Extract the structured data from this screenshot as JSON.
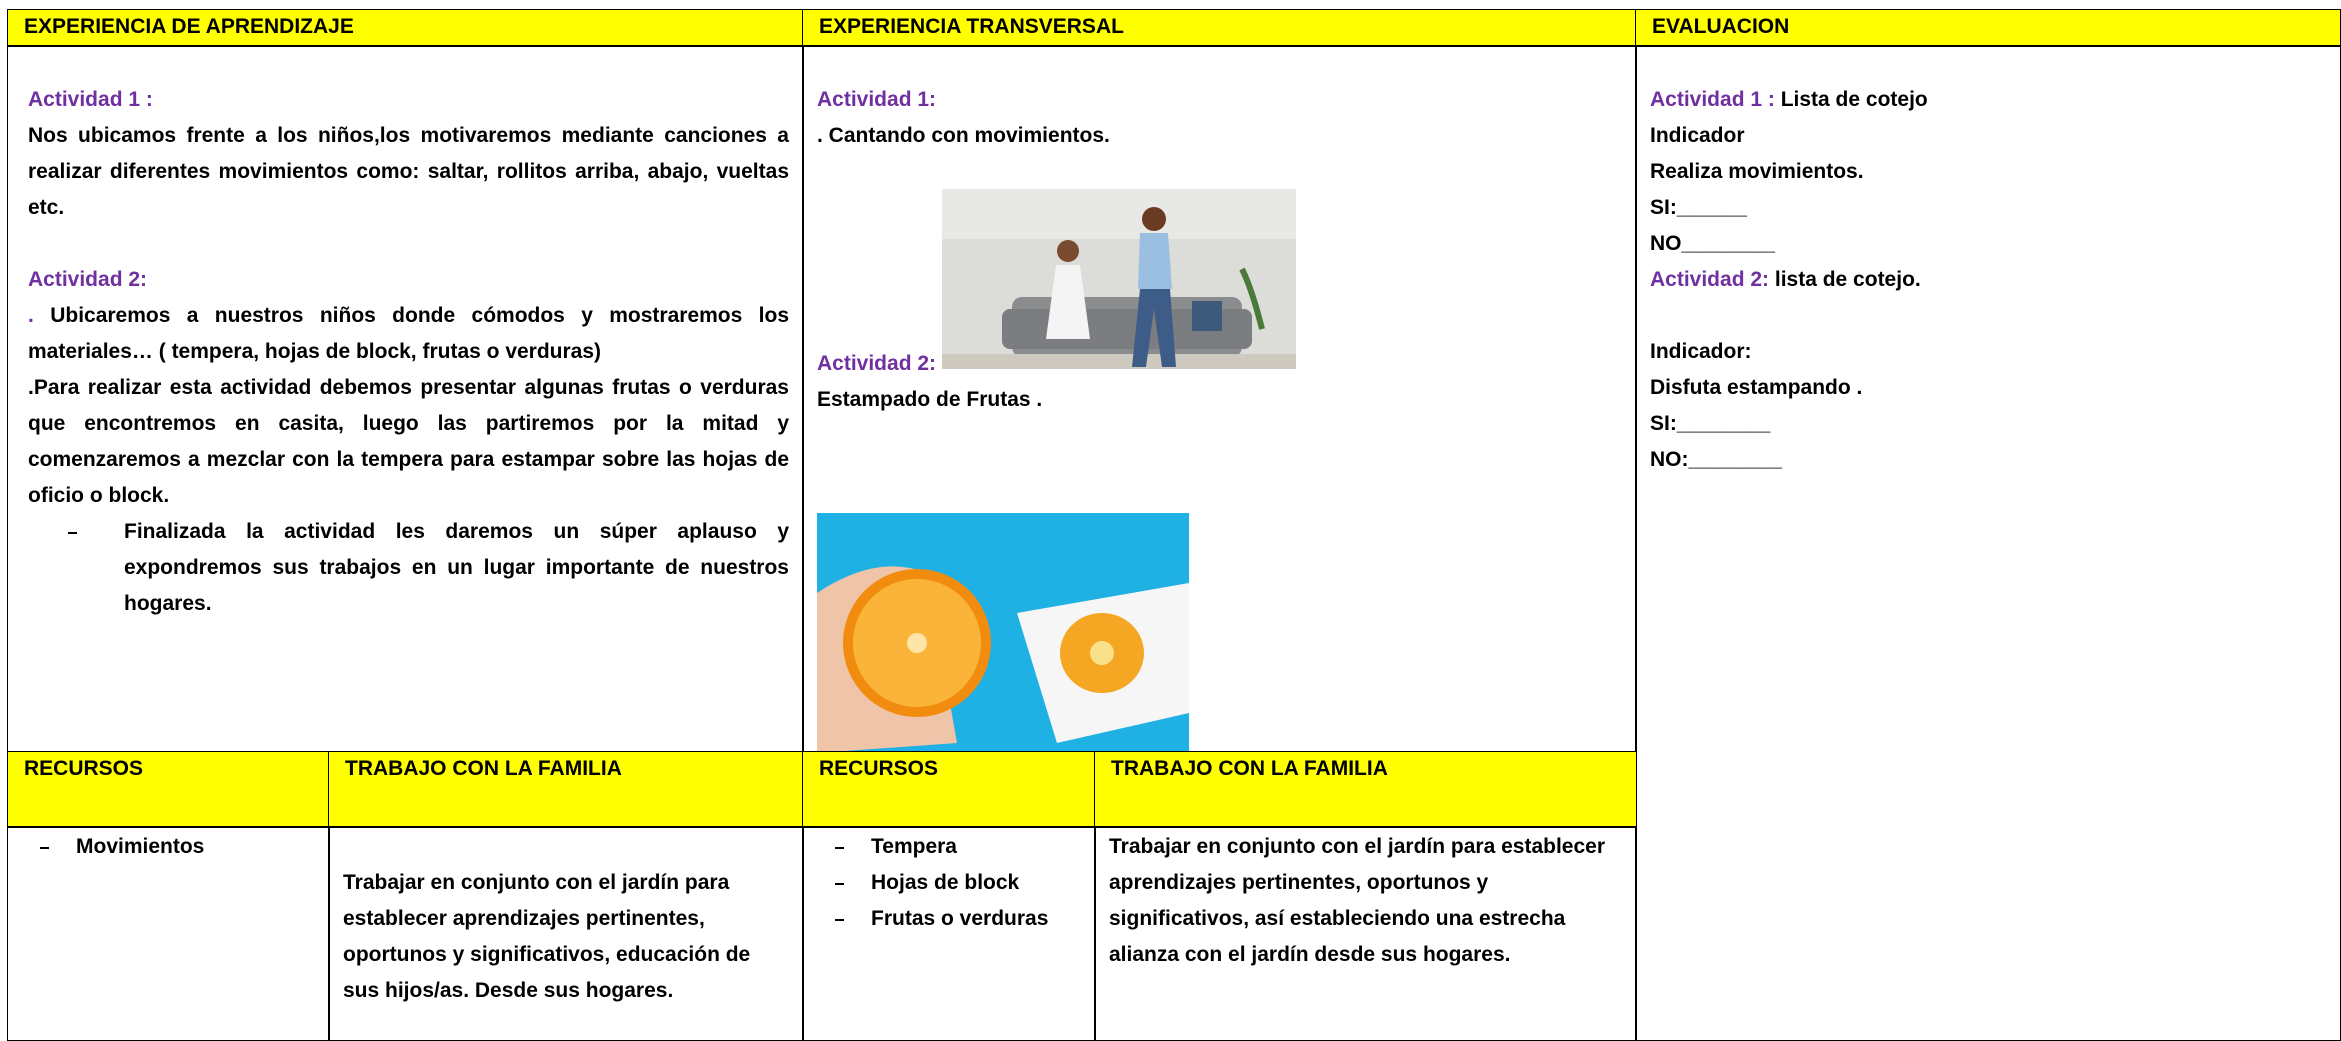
{
  "headers": {
    "learning": "EXPERIENCIA DE APRENDIZAJE",
    "transversal": "EXPERIENCIA TRANSVERSAL",
    "evaluation": "EVALUACION"
  },
  "learning": {
    "activity1": {
      "title": "Actividad 1 :",
      "text": "Nos ubicamos frente a los niños,los motivaremos mediante canciones a realizar diferentes movimientos como: saltar, rollitos  arriba, abajo, vueltas etc."
    },
    "activity2": {
      "title": "Actividad 2:",
      "prefix": ".",
      "text": " Ubicaremos a nuestros niños donde  cómodos y mostraremos los materiales… ( tempera, hojas de block, frutas o verduras)",
      "text2": ".Para realizar esta actividad debemos presentar algunas frutas o verduras que encontremos en casita, luego las partiremos por la mitad y comenzaremos a mezclar con la tempera para estampar sobre las hojas de oficio o block.",
      "bullet": "Finalizada la actividad les daremos un súper aplauso y expondremos sus trabajos en un lugar importante de nuestros hogares."
    }
  },
  "transversal": {
    "activity1": {
      "title": "Actividad 1:",
      "text": ". Cantando con movimientos."
    },
    "activity2": {
      "title": "Actividad 2:",
      "text": "Estampado de Frutas ."
    }
  },
  "evaluation": {
    "activity1": {
      "label": "Actividad 1 :",
      "text": " Lista de cotejo"
    },
    "lines1": [
      "Indicador",
      "Realiza movimientos.",
      "SI:______",
      "NO________"
    ],
    "activity2": {
      "label": "Actividad 2:",
      "text": " lista de cotejo."
    },
    "lines2": [
      "Indicador:",
      "Disfuta estampando .",
      "SI:________",
      "NO:________"
    ]
  },
  "bottom": {
    "left": {
      "resources_header": "RECURSOS",
      "family_header": "TRABAJO CON LA FAMILIA",
      "resources": [
        "Movimientos"
      ],
      "family": "Trabajar en conjunto con el jardín para establecer aprendizajes pertinentes, oportunos y significativos, educación de sus hijos/as. Desde sus hogares."
    },
    "right": {
      "resources_header": "RECURSOS",
      "family_header": "TRABAJO CON LA FAMILIA",
      "resources": [
        "Tempera",
        "Hojas de block",
        "Frutas o verduras"
      ],
      "family": "Trabajar en conjunto con el jardín para establecer aprendizajes pertinentes, oportunos y significativos, así estableciendo una estrecha alianza con el jardín desde sus hogares."
    }
  }
}
